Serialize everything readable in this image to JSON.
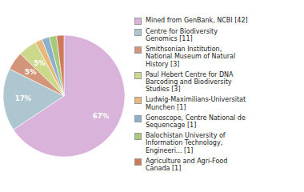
{
  "chart_data": {
    "type": "pie",
    "categories": [
      "Mined from GenBank, NCBI [42]",
      "Centre for Biodiversity\nGenomics [11]",
      "Smithsonian Institution,\nNational Museum of Natural\nHistory [3]",
      "Paul Hebert Centre for DNA\nBarcoding and Biodiversity\nStudies [3]",
      "Ludwig-Maximilians-Universitat\nMunchen [1]",
      "Genoscope, Centre National de\nSequencage [1]",
      "Balochistan University of\nInformation Technology,\nEngineeri... [1]",
      "Agriculture and Agri-Food\nCanada [1]"
    ],
    "values": [
      67,
      17,
      5,
      5,
      2,
      2,
      2,
      2
    ],
    "value_labels": [
      "67%",
      "17%",
      "5%",
      "5%",
      null,
      null,
      null,
      null
    ],
    "colors": [
      "#d9b3d9",
      "#aec6cf",
      "#d4967a",
      "#ccd98a",
      "#e8b87a",
      "#8ab0cc",
      "#a8c87a",
      "#cc7a5a"
    ],
    "data_labels": true,
    "legend": "right"
  }
}
